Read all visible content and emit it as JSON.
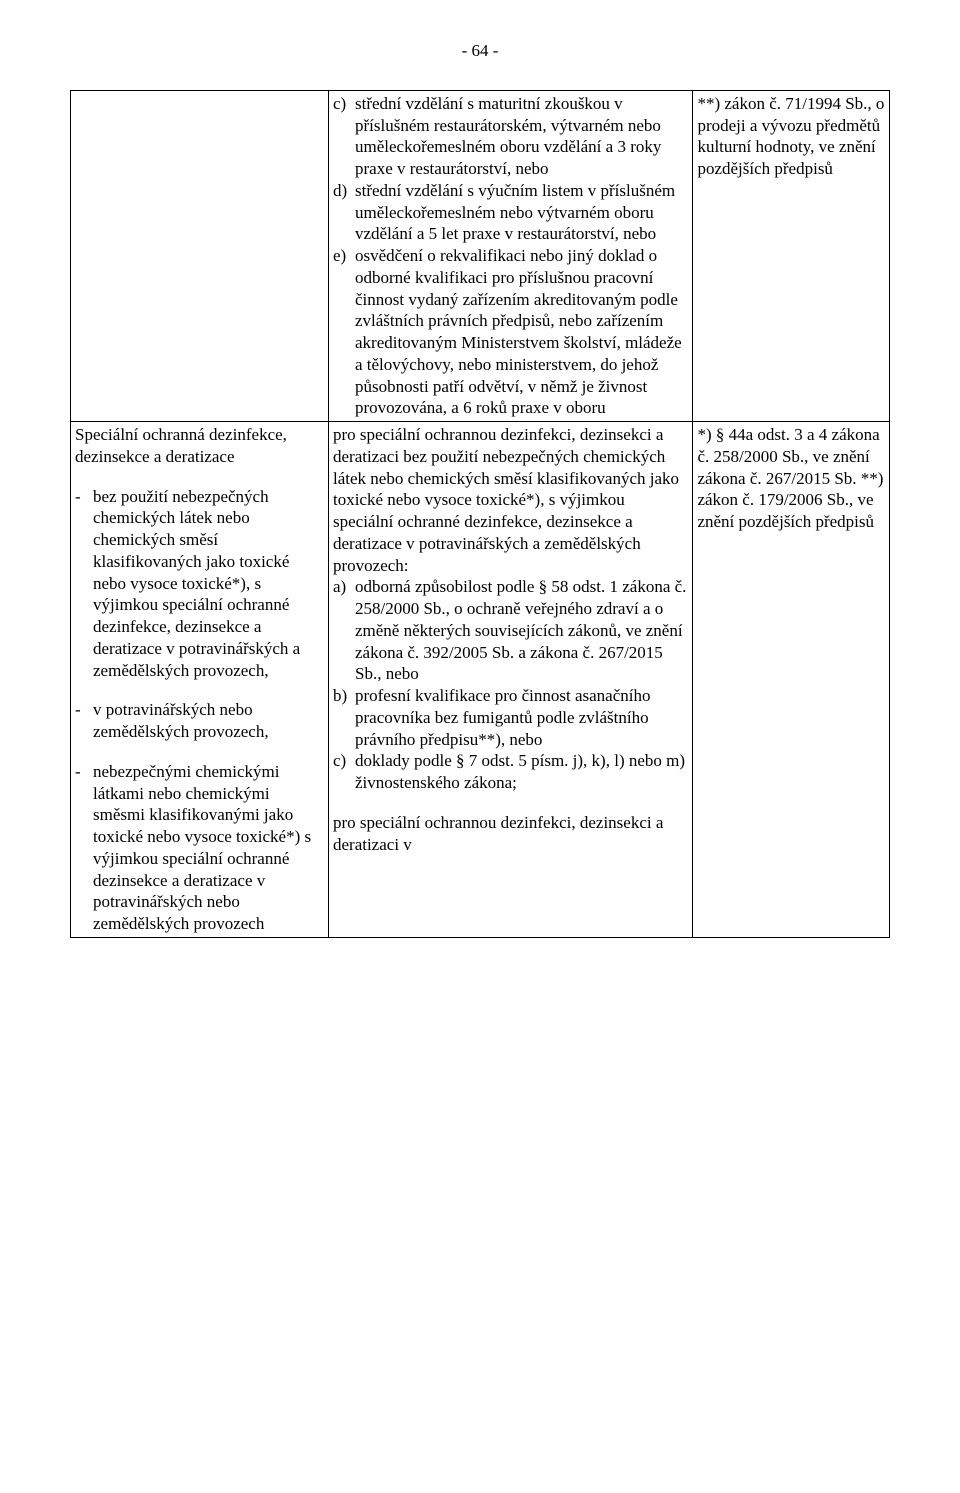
{
  "pageNumber": "- 64 -",
  "row1": {
    "col2": {
      "items": [
        {
          "m": "c)",
          "t": "střední vzdělání s maturitní zkouškou v příslušném restaurátorském, výtvarném nebo uměleckořemeslném oboru vzdělání a 3 roky praxe v restaurátorství, nebo"
        },
        {
          "m": "d)",
          "t": "střední vzdělání s výučním listem v příslušném uměleckořemeslném nebo výtvarném oboru vzdělání a 5 let praxe v restaurátorství, nebo"
        },
        {
          "m": "e)",
          "t": "osvědčení o rekvalifikaci nebo jiný doklad o odborné kvalifikaci pro příslušnou pracovní činnost vydaný zařízením akreditovaným podle zvláštních právních předpisů, nebo zařízením akreditovaným Ministerstvem školství, mládeže a tělovýchovy, nebo ministerstvem, do jehož působnosti patří odvětví, v němž je živnost provozována, a 6 roků praxe v oboru"
        }
      ]
    },
    "col3": "**) zákon č. 71/1994 Sb., o prodeji a vývozu předmětů kulturní hodnoty, ve znění pozdějších předpisů"
  },
  "row2": {
    "col1": {
      "intro": "Speciální ochranná dezinfekce, dezinsekce a deratizace",
      "items": [
        "bez použití nebezpečných chemických látek nebo chemických směsí klasifikovaných jako toxické nebo vysoce toxické*), s výjimkou speciální ochranné dezinfekce, dezinsekce a deratizace v potravinářských a zemědělských provozech,",
        "v potravinářských nebo zemědělských provozech,",
        "nebezpečnými chemickými látkami nebo chemickými směsmi klasifikovanými jako toxické nebo vysoce toxické*) s výjimkou speciální ochranné dezinsekce a deratizace v potravinářských nebo zemědělských provozech"
      ]
    },
    "col2": {
      "lead": "pro speciální ochrannou dezinfekci, dezinsekci a deratizaci bez použití nebezpečných chemických látek nebo chemických směsí klasifikovaných jako toxické nebo vysoce toxické*), s výjimkou speciální ochranné dezinfekce, dezinsekce a deratizace v potravinářských a zemědělských provozech:",
      "items": [
        {
          "m": "a)",
          "t": "odborná způsobilost podle § 58 odst. 1 zákona č. 258/2000 Sb., o ochraně veřejného zdraví a o změně některých souvisejících zákonů, ve znění zákona č. 392/2005 Sb. a zákona č. 267/2015 Sb., nebo"
        },
        {
          "m": "b)",
          "t": "profesní kvalifikace pro činnost asanačního pracovníka bez fumigantů podle zvláštního právního předpisu**), nebo"
        },
        {
          "m": "c)",
          "t": "doklady podle § 7 odst. 5 písm. j), k), l) nebo m) živnostenského zákona;"
        }
      ],
      "trailing": "pro speciální ochrannou dezinfekci, dezinsekci a deratizaci v"
    },
    "col3": "*) § 44a odst. 3 a 4 zákona č. 258/2000 Sb., ve znění zákona č. 267/2015 Sb. **) zákon č. 179/2006 Sb., ve znění pozdějších předpisů"
  }
}
